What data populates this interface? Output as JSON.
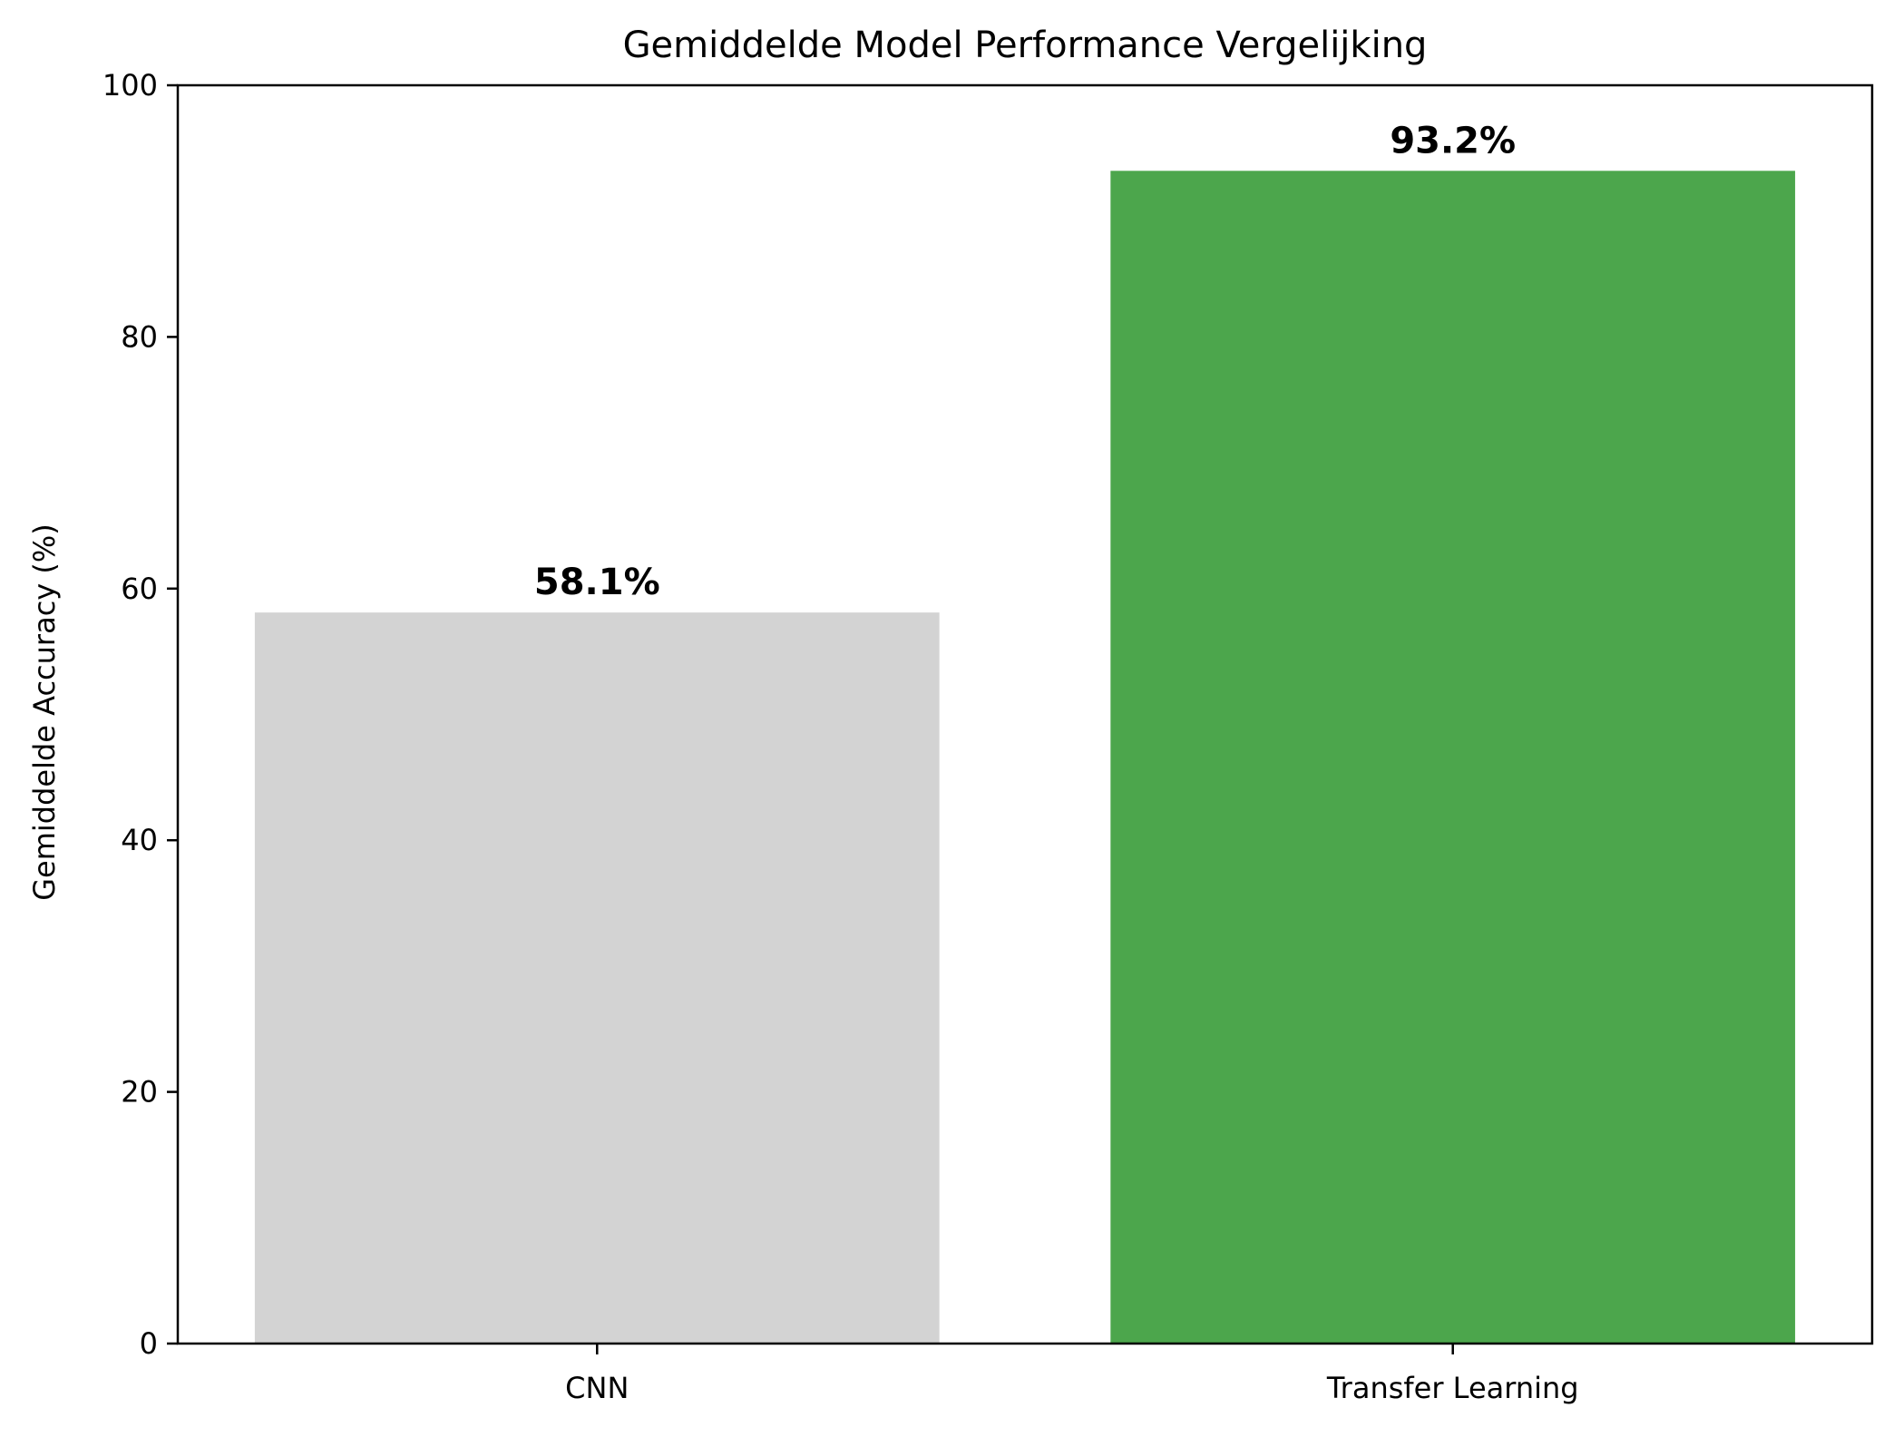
{
  "chart_data": {
    "type": "bar",
    "title": "Gemiddelde Model Performance Vergelijking",
    "xlabel": "",
    "ylabel": "Gemiddelde Accuracy (%)",
    "categories": [
      "CNN",
      "Transfer Learning"
    ],
    "values": [
      58.1,
      93.2
    ],
    "value_labels": [
      "58.1%",
      "93.2%"
    ],
    "colors": [
      "#d3d3d3",
      "#4ca64c"
    ],
    "ylim": [
      0,
      100
    ],
    "yticks": [
      0,
      20,
      40,
      60,
      80,
      100
    ],
    "ytick_labels": [
      "0",
      "20",
      "40",
      "60",
      "80",
      "100"
    ],
    "grid": false,
    "legend": "none"
  }
}
